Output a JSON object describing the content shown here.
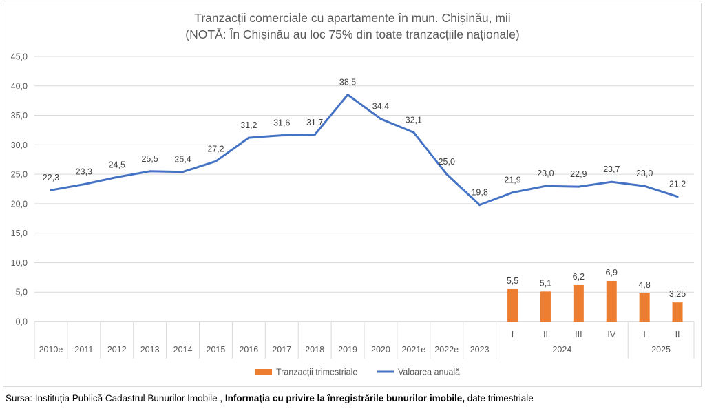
{
  "chart_data": {
    "type": "line",
    "title_line1": "Tranzacții comerciale cu apartamente în mun. Chișinău, mii",
    "title_line2": "(NOTĂ: În Chișinău au loc 75% din toate tranzacțiile naționale)",
    "ylim": [
      0,
      45
    ],
    "yticks": [
      "45,0",
      "40,0",
      "35,0",
      "30,0",
      "25,0",
      "20,0",
      "15,0",
      "10,0",
      "5,0",
      "0,0"
    ],
    "categories": [
      "2010e",
      "2011",
      "2012",
      "2013",
      "2014",
      "2015",
      "2016",
      "2017",
      "2018",
      "2019",
      "2020",
      "2021e",
      "2022e",
      "2023",
      "I",
      "II",
      "III",
      "IV",
      "I",
      "II"
    ],
    "group_labels": [
      {
        "label": "2024",
        "from": 14,
        "to": 17
      },
      {
        "label": "2025",
        "from": 18,
        "to": 19
      }
    ],
    "grid": true,
    "legend_position": "bottom",
    "series": [
      {
        "name": "Valoarea anuală",
        "type": "line",
        "color": "#4472c4",
        "values": [
          22.3,
          23.3,
          24.5,
          25.5,
          25.4,
          27.2,
          31.2,
          31.6,
          31.7,
          38.5,
          34.4,
          32.1,
          25.0,
          19.8,
          21.9,
          23.0,
          22.9,
          23.7,
          23.0,
          21.2
        ],
        "labels": [
          "22,3",
          "23,3",
          "24,5",
          "25,5",
          "25,4",
          "27,2",
          "31,2",
          "31,6",
          "31,7",
          "38,5",
          "34,4",
          "32,1",
          "25,0",
          "19,8",
          "21,9",
          "23,0",
          "22,9",
          "23,7",
          "23,0",
          "21,2"
        ]
      },
      {
        "name": "Tranzacții trimestriale",
        "type": "bar",
        "color": "#ed7d31",
        "values": [
          null,
          null,
          null,
          null,
          null,
          null,
          null,
          null,
          null,
          null,
          null,
          null,
          null,
          null,
          5.5,
          5.1,
          6.2,
          6.9,
          4.8,
          3.25
        ],
        "labels": [
          null,
          null,
          null,
          null,
          null,
          null,
          null,
          null,
          null,
          null,
          null,
          null,
          null,
          null,
          "5,5",
          "5,1",
          "6,2",
          "6,9",
          "4,8",
          "3,25"
        ]
      }
    ]
  },
  "source": {
    "prefix": "Sursa: Instituția Publică Cadastrul Bunurilor Imobile ,",
    "bold": "Informaţia cu privire la înregistrările bunurilor imobile,",
    "suffix": "date trimestriale"
  }
}
